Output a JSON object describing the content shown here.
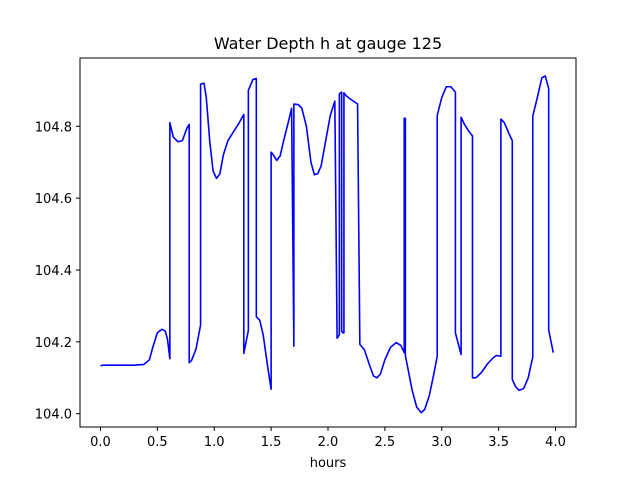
{
  "chart_data": {
    "type": "line",
    "title": "Water Depth h at gauge 125",
    "xlabel": "hours",
    "ylabel": "",
    "xlim": [
      -0.18,
      4.18
    ],
    "ylim": [
      103.963,
      104.99
    ],
    "xticks": [
      0.0,
      0.5,
      1.0,
      1.5,
      2.0,
      2.5,
      3.0,
      3.5,
      4.0
    ],
    "xtick_labels": [
      "0.0",
      "0.5",
      "1.0",
      "1.5",
      "2.0",
      "2.5",
      "3.0",
      "3.5",
      "4.0"
    ],
    "yticks": [
      104.0,
      104.2,
      104.4,
      104.6,
      104.8
    ],
    "ytick_labels": [
      "104.0",
      "104.2",
      "104.4",
      "104.6",
      "104.8"
    ],
    "grid": false,
    "legend": "none",
    "series": [
      {
        "color": "#0000ff",
        "points": [
          [
            0.0,
            104.133
          ],
          [
            0.02,
            104.135
          ],
          [
            0.1,
            104.135
          ],
          [
            0.2,
            104.135
          ],
          [
            0.3,
            104.135
          ],
          [
            0.38,
            104.137
          ],
          [
            0.43,
            104.15
          ],
          [
            0.46,
            104.185
          ],
          [
            0.5,
            104.225
          ],
          [
            0.54,
            104.235
          ],
          [
            0.57,
            104.23
          ],
          [
            0.59,
            104.205
          ],
          [
            0.61,
            104.153
          ],
          [
            0.61,
            104.81
          ],
          [
            0.64,
            104.77
          ],
          [
            0.68,
            104.757
          ],
          [
            0.72,
            104.76
          ],
          [
            0.76,
            104.795
          ],
          [
            0.78,
            104.805
          ],
          [
            0.78,
            104.142
          ],
          [
            0.8,
            104.148
          ],
          [
            0.84,
            104.18
          ],
          [
            0.88,
            104.247
          ],
          [
            0.88,
            104.917
          ],
          [
            0.91,
            104.92
          ],
          [
            0.93,
            104.88
          ],
          [
            0.96,
            104.76
          ],
          [
            0.99,
            104.675
          ],
          [
            1.02,
            104.655
          ],
          [
            1.05,
            104.668
          ],
          [
            1.08,
            104.72
          ],
          [
            1.12,
            104.76
          ],
          [
            1.18,
            104.79
          ],
          [
            1.22,
            104.81
          ],
          [
            1.26,
            104.833
          ],
          [
            1.26,
            104.168
          ],
          [
            1.3,
            104.232
          ],
          [
            1.3,
            104.9
          ],
          [
            1.34,
            104.93
          ],
          [
            1.37,
            104.933
          ],
          [
            1.37,
            104.27
          ],
          [
            1.4,
            104.26
          ],
          [
            1.43,
            104.22
          ],
          [
            1.47,
            104.13
          ],
          [
            1.5,
            104.068
          ],
          [
            1.5,
            104.728
          ],
          [
            1.52,
            104.72
          ],
          [
            1.55,
            104.705
          ],
          [
            1.58,
            104.718
          ],
          [
            1.61,
            104.76
          ],
          [
            1.65,
            104.81
          ],
          [
            1.68,
            104.85
          ],
          [
            1.7,
            104.188
          ],
          [
            1.7,
            104.862
          ],
          [
            1.74,
            104.86
          ],
          [
            1.77,
            104.85
          ],
          [
            1.81,
            104.8
          ],
          [
            1.85,
            104.7
          ],
          [
            1.88,
            104.665
          ],
          [
            1.91,
            104.668
          ],
          [
            1.94,
            104.69
          ],
          [
            1.98,
            104.76
          ],
          [
            2.02,
            104.83
          ],
          [
            2.06,
            104.87
          ],
          [
            2.08,
            104.21
          ],
          [
            2.1,
            104.22
          ],
          [
            2.1,
            104.89
          ],
          [
            2.12,
            104.895
          ],
          [
            2.12,
            104.23
          ],
          [
            2.13,
            104.225
          ],
          [
            2.14,
            104.225
          ],
          [
            2.14,
            104.893
          ],
          [
            2.16,
            104.885
          ],
          [
            2.2,
            104.875
          ],
          [
            2.26,
            104.862
          ],
          [
            2.28,
            104.193
          ],
          [
            2.32,
            104.178
          ],
          [
            2.36,
            104.14
          ],
          [
            2.4,
            104.105
          ],
          [
            2.43,
            104.1
          ],
          [
            2.46,
            104.11
          ],
          [
            2.5,
            104.15
          ],
          [
            2.55,
            104.185
          ],
          [
            2.6,
            104.198
          ],
          [
            2.64,
            104.19
          ],
          [
            2.67,
            104.17
          ],
          [
            2.67,
            104.822
          ],
          [
            2.68,
            104.822
          ],
          [
            2.68,
            104.162
          ],
          [
            2.7,
            104.13
          ],
          [
            2.74,
            104.065
          ],
          [
            2.78,
            104.018
          ],
          [
            2.82,
            104.003
          ],
          [
            2.85,
            104.012
          ],
          [
            2.89,
            104.05
          ],
          [
            2.93,
            104.11
          ],
          [
            2.96,
            104.16
          ],
          [
            2.96,
            104.83
          ],
          [
            3.0,
            104.88
          ],
          [
            3.04,
            104.91
          ],
          [
            3.08,
            104.91
          ],
          [
            3.12,
            104.895
          ],
          [
            3.12,
            104.225
          ],
          [
            3.17,
            104.165
          ],
          [
            3.17,
            104.825
          ],
          [
            3.2,
            104.805
          ],
          [
            3.24,
            104.785
          ],
          [
            3.27,
            104.773
          ],
          [
            3.27,
            104.1
          ],
          [
            3.3,
            104.1
          ],
          [
            3.35,
            104.115
          ],
          [
            3.4,
            104.138
          ],
          [
            3.45,
            104.155
          ],
          [
            3.48,
            104.162
          ],
          [
            3.52,
            104.16
          ],
          [
            3.52,
            104.82
          ],
          [
            3.55,
            104.81
          ],
          [
            3.59,
            104.78
          ],
          [
            3.62,
            104.76
          ],
          [
            3.62,
            104.095
          ],
          [
            3.65,
            104.075
          ],
          [
            3.68,
            104.065
          ],
          [
            3.72,
            104.07
          ],
          [
            3.76,
            104.1
          ],
          [
            3.8,
            104.158
          ],
          [
            3.8,
            104.828
          ],
          [
            3.84,
            104.88
          ],
          [
            3.88,
            104.935
          ],
          [
            3.91,
            104.94
          ],
          [
            3.94,
            104.905
          ],
          [
            3.94,
            104.233
          ],
          [
            3.98,
            104.17
          ]
        ]
      }
    ]
  }
}
